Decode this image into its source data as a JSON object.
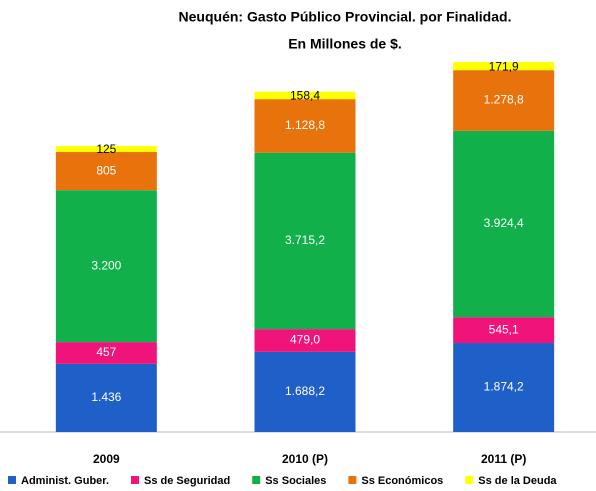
{
  "chart_data": {
    "type": "stacked_bar",
    "title": "Neuquén: Gasto Público Provincial. por Finalidad.",
    "subtitle": "En Millones de $.",
    "categories": [
      "2009",
      "2010 (P)",
      "2011 (P)"
    ],
    "series": [
      {
        "name": "Administ. Guber.",
        "color": "#1f5fc8",
        "values": [
          1436,
          1688.2,
          1874.2
        ],
        "value_labels": [
          "1.436",
          "1.688,2",
          "1.874,2"
        ]
      },
      {
        "name": "Ss de Seguridad",
        "color": "#f0147a",
        "values": [
          457,
          479.0,
          545.1
        ],
        "value_labels": [
          "457",
          "479,0",
          "545,1"
        ]
      },
      {
        "name": "Ss Sociales",
        "color": "#12b04a",
        "values": [
          3200,
          3715.2,
          3924.4
        ],
        "value_labels": [
          "3.200",
          "3.715,2",
          "3.924,4"
        ]
      },
      {
        "name": "Ss Económicos",
        "color": "#e8720c",
        "values": [
          805,
          1128.8,
          1278.8
        ],
        "value_labels": [
          "805",
          "1.128,8",
          "1.278,8"
        ]
      },
      {
        "name": "Ss de la Deuda",
        "color": "#ffff00",
        "values": [
          125,
          158.4,
          171.9
        ],
        "value_labels": [
          "125",
          "158,4",
          "171,9"
        ]
      }
    ],
    "legend": "bottom"
  }
}
